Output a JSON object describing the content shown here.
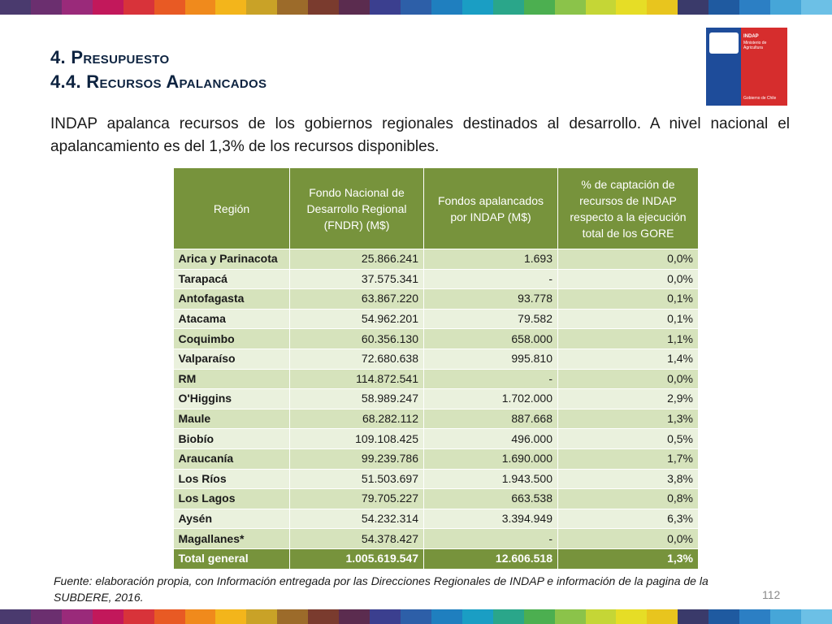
{
  "header": {
    "title_line1": "4. Presupuesto",
    "title_line2": "4.4. Recursos Apalancados"
  },
  "logo": {
    "name": "INDAP",
    "subtitle": "Ministerio de Agricultura",
    "footer": "Gobierno de Chile",
    "colors": {
      "blue": "#1e4c9a",
      "red": "#d62d2d"
    }
  },
  "intro": "INDAP apalanca recursos de los gobiernos regionales destinados al desarrollo. A nivel nacional el apalancamiento es del 1,3% de los recursos disponibles.",
  "table": {
    "headers": [
      "Región",
      "Fondo Nacional de Desarrollo Regional (FNDR) (M$)",
      "Fondos apalancados por INDAP (M$)",
      "% de captación de recursos de INDAP respecto a la ejecución total de los GORE"
    ],
    "rows": [
      [
        "Arica y Parinacota",
        "25.866.241",
        "1.693",
        "0,0%"
      ],
      [
        "Tarapacá",
        "37.575.341",
        "-",
        "0,0%"
      ],
      [
        "Antofagasta",
        "63.867.220",
        "93.778",
        "0,1%"
      ],
      [
        "Atacama",
        "54.962.201",
        "79.582",
        "0,1%"
      ],
      [
        "Coquimbo",
        "60.356.130",
        "658.000",
        "1,1%"
      ],
      [
        "Valparaíso",
        "72.680.638",
        "995.810",
        "1,4%"
      ],
      [
        "RM",
        "114.872.541",
        "-",
        "0,0%"
      ],
      [
        "O'Higgins",
        "58.989.247",
        "1.702.000",
        "2,9%"
      ],
      [
        "Maule",
        "68.282.112",
        "887.668",
        "1,3%"
      ],
      [
        "Biobío",
        "109.108.425",
        "496.000",
        "0,5%"
      ],
      [
        "Araucanía",
        "99.239.786",
        "1.690.000",
        "1,7%"
      ],
      [
        "Los Ríos",
        "51.503.697",
        "1.943.500",
        "3,8%"
      ],
      [
        "Los Lagos",
        "79.705.227",
        "663.538",
        "0,8%"
      ],
      [
        "Aysén",
        "54.232.314",
        "3.394.949",
        "6,3%"
      ],
      [
        "Magallanes*",
        "54.378.427",
        "-",
        "0,0%"
      ]
    ],
    "total": [
      "Total general",
      "1.005.619.547",
      "12.606.518",
      "1,3%"
    ],
    "colors": {
      "header": "#77933c",
      "row_dark": "#d6e3bc",
      "row_light": "#eaf1dd"
    }
  },
  "source": "Fuente: elaboración propia, con Información entregada por las Direcciones Regionales de INDAP e información de la pagina de la SUBDERE, 2016.",
  "page_number": "112",
  "stripe_colors": [
    "#4a3a6e",
    "#6b2f6f",
    "#9a2a7a",
    "#c2185b",
    "#d8333a",
    "#e85a24",
    "#f08a1c",
    "#f3b51b",
    "#c9a227",
    "#9c6b2a",
    "#7a3b2e",
    "#5b2c4f",
    "#3b3f8f",
    "#2d5fa8",
    "#1f7fbf",
    "#1a9ec4",
    "#2aa68a",
    "#4caf50",
    "#8bc34a",
    "#c5d636",
    "#e6dd26",
    "#e8c51e",
    "#3a3a6a",
    "#1f5aa0",
    "#2c7fc4",
    "#46a6d8",
    "#6cc0e6"
  ]
}
